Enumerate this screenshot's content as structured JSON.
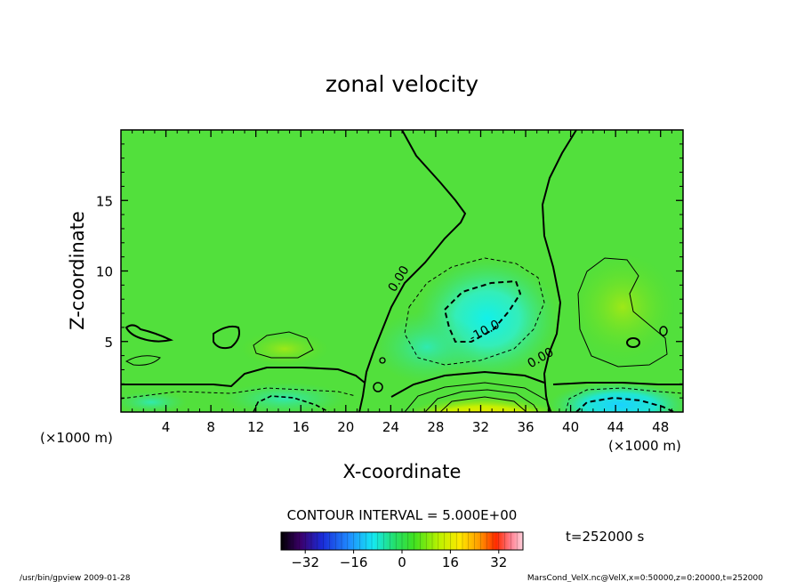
{
  "chart_data": {
    "type": "heatmap",
    "title": "zonal velocity",
    "xlabel": "X-coordinate",
    "ylabel": "Z-coordinate",
    "x_units": "(×1000 m)",
    "xlim": [
      0,
      50
    ],
    "ylim": [
      0,
      20
    ],
    "xticks": [
      4,
      8,
      12,
      16,
      20,
      24,
      28,
      32,
      36,
      40,
      44,
      48
    ],
    "yticks": [
      5,
      10,
      15
    ],
    "contour_labels": [
      {
        "text": "0.00",
        "x": 25.0,
        "y": 9.3
      },
      {
        "text": "-10.0",
        "x": 32.5,
        "y": 5.5
      },
      {
        "text": "0.00",
        "x": 37.5,
        "y": 3.6
      }
    ],
    "contour_interval_text": "CONTOUR INTERVAL = 5.000E+00",
    "time_text": "t=252000 s",
    "colorbar": {
      "ticks": [
        -32,
        -16,
        0,
        16,
        32
      ],
      "range": [
        -40,
        40
      ],
      "palette": [
        "#000000",
        "#3b006a",
        "#1a2bd8",
        "#1f8bff",
        "#15e8f2",
        "#24e06a",
        "#40e020",
        "#b8f200",
        "#ffe800",
        "#ff9a00",
        "#ff2a00",
        "#ff7f90",
        "#ffd0dc"
      ]
    },
    "background_value": 0.0,
    "features": [
      {
        "name": "negative core aloft",
        "x": 32.5,
        "z": 6.5,
        "value": -12
      },
      {
        "name": "positive jet near ground",
        "x": 32,
        "z": 0.6,
        "value": 18
      },
      {
        "name": "negative near-surface flow east",
        "x": 44.5,
        "z": 1.2,
        "value": -10
      },
      {
        "name": "negative near-surface flow west",
        "x": 15,
        "z": 1.3,
        "value": -6
      },
      {
        "name": "positive lobe east",
        "x": 43.5,
        "z": 8.0,
        "value": 3
      }
    ]
  },
  "footer": {
    "left": "/usr/bin/gpview  2009-01-28",
    "right": "MarsCond_VelX.nc@VelX,x=0:50000,z=0:20000,t=252000"
  }
}
